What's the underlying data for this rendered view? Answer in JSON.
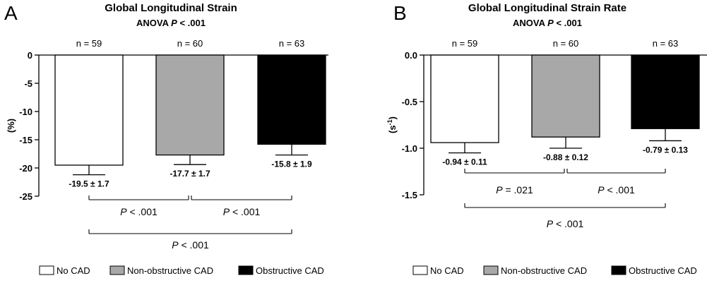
{
  "chart_data": [
    {
      "type": "bar",
      "panel_letter": "A",
      "title": "Global Longitudinal Strain",
      "subtitle_prefix": "ANOVA",
      "subtitle_p": "P",
      "subtitle_rest": " < .001",
      "ylabel": "(%)",
      "ylim": [
        -25,
        0
      ],
      "yticks": [
        "0",
        "-5",
        "-10",
        "-15",
        "-20",
        "-25"
      ],
      "ytick_values": [
        0,
        -5,
        -10,
        -15,
        -20,
        -25
      ],
      "categories": [
        "No CAD",
        "Non-obstructive CAD",
        "Obstructive CAD"
      ],
      "values": [
        -19.5,
        -17.7,
        -15.8
      ],
      "errors": [
        1.7,
        1.7,
        1.9
      ],
      "value_labels": [
        "-19.5 ± 1.7",
        "-17.7 ± 1.7",
        "-15.8 ± 1.9"
      ],
      "n_labels": [
        "n = 59",
        "n = 60",
        "n = 63"
      ],
      "colors": [
        "#ffffff",
        "#a8a8a8",
        "#000000"
      ],
      "comparisons": [
        {
          "from": 0,
          "to": 1,
          "p": "P",
          "text": " < .001",
          "level": 0
        },
        {
          "from": 1,
          "to": 2,
          "p": "P",
          "text": " < .001",
          "level": 0
        },
        {
          "from": 0,
          "to": 2,
          "p": "P",
          "text": " < .001",
          "level": 1
        }
      ]
    },
    {
      "type": "bar",
      "panel_letter": "B",
      "title": "Global Longitudinal Strain Rate",
      "subtitle_prefix": "ANOVA",
      "subtitle_p": "P",
      "subtitle_rest": " < .001",
      "ylabel": "(s",
      "ylabel_sup": "-1",
      "ylabel_end": ")",
      "ylim": [
        -1.5,
        0
      ],
      "yticks": [
        "0.0",
        "-0.5",
        "-1.0",
        "-1.5"
      ],
      "ytick_values": [
        0,
        -0.5,
        -1.0,
        -1.5
      ],
      "categories": [
        "No CAD",
        "Non-obstructive CAD",
        "Obstructive CAD"
      ],
      "values": [
        -0.94,
        -0.88,
        -0.79
      ],
      "errors": [
        0.11,
        0.12,
        0.13
      ],
      "value_labels": [
        "-0.94 ± 0.11",
        "-0.88 ± 0.12",
        "-0.79 ± 0.13"
      ],
      "n_labels": [
        "n = 59",
        "n = 60",
        "n = 63"
      ],
      "colors": [
        "#ffffff",
        "#a8a8a8",
        "#000000"
      ],
      "comparisons": [
        {
          "from": 0,
          "to": 1,
          "p": "P",
          "text": " = .021",
          "level": 0
        },
        {
          "from": 1,
          "to": 2,
          "p": "P",
          "text": " < .001",
          "level": 0
        },
        {
          "from": 0,
          "to": 2,
          "p": "P",
          "text": " < .001",
          "level": 1
        }
      ]
    }
  ],
  "legend": [
    {
      "label": "No CAD",
      "color": "#ffffff"
    },
    {
      "label": "Non-obstructive CAD",
      "color": "#a8a8a8"
    },
    {
      "label": "Obstructive CAD",
      "color": "#000000"
    }
  ]
}
